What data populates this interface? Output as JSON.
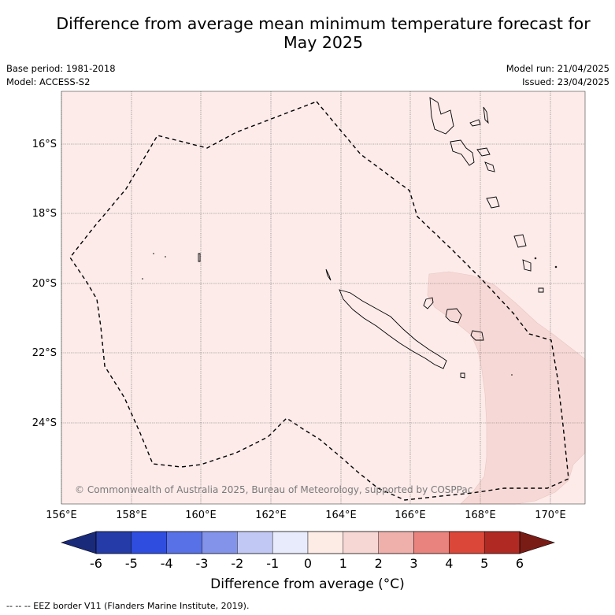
{
  "title": {
    "line1": "Difference from average mean minimum temperature forecast for",
    "line2": "May 2025"
  },
  "meta": {
    "base_period": "Base period: 1981-2018",
    "model": "Model: ACCESS-S2",
    "model_run": "Model run: 21/04/2025",
    "issued": "Issued: 23/04/2025"
  },
  "map": {
    "lon_ticks": [
      "156°E",
      "158°E",
      "160°E",
      "162°E",
      "164°E",
      "166°E",
      "168°E",
      "170°E"
    ],
    "lat_ticks": [
      "16°S",
      "18°S",
      "20°S",
      "22°S",
      "24°S"
    ],
    "copyright": "© Commonwealth of Australia 2025, Bureau of Meteorology, supported by COSPPac",
    "background_anomaly_color": "#fcebe9",
    "warm_anomaly_color": "#f6d9d6"
  },
  "colorbar": {
    "labels": [
      "-6",
      "-5",
      "-4",
      "-3",
      "-2",
      "-1",
      "0",
      "1",
      "2",
      "3",
      "4",
      "5",
      "6"
    ],
    "colors": [
      "#243ba8",
      "#2f4ee0",
      "#5871e6",
      "#8493ea",
      "#c1c8f4",
      "#e8ebfb",
      "#fdebe6",
      "#f6d7d3",
      "#efafab",
      "#e8837e",
      "#db4739",
      "#b02a23"
    ],
    "extend_low": "#1a2a7a",
    "extend_high": "#7a1c16",
    "label": "Difference from average (°C)"
  },
  "footnote": "--  --  -- EEZ border V11 (Flanders Marine Institute, 2019)."
}
